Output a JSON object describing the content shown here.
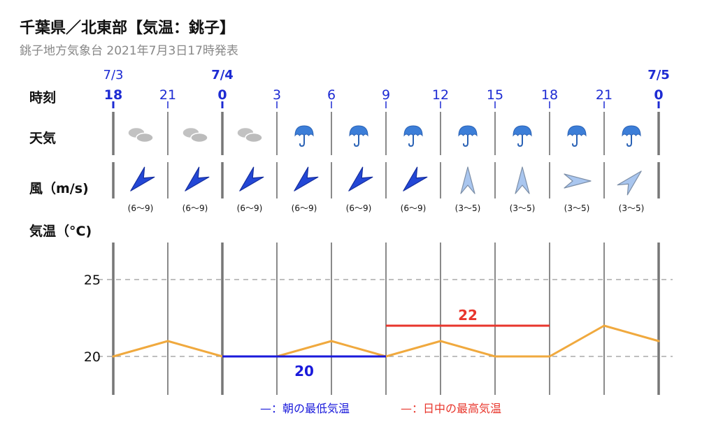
{
  "header": {
    "title": "千葉県／北東部【気温：銚子】",
    "subtitle": "銚子地方気象台 2021年7月3日17時発表"
  },
  "row_labels": {
    "time": "時刻",
    "weather": "天気",
    "wind": "風（m/s)",
    "temp": "気温（°C)"
  },
  "colors": {
    "date_text": "#1d2bd3",
    "temp_line": "#f0a93e",
    "min_line": "#1a1adb",
    "max_line": "#e8362c"
  },
  "chart_data": {
    "type": "line",
    "x": [
      "18",
      "21",
      "0",
      "3",
      "6",
      "9",
      "12",
      "15",
      "18",
      "21",
      "0"
    ],
    "day_markers": [
      {
        "index": 0,
        "label": "7/3",
        "bold": false
      },
      {
        "index": 2,
        "label": "7/4",
        "bold": true
      },
      {
        "index": 10,
        "label": "7/5",
        "bold": true
      }
    ],
    "series": [
      {
        "values": [
          20,
          21,
          20,
          20,
          21,
          20,
          21,
          20,
          20,
          22,
          21
        ]
      }
    ],
    "weather": [
      "cloudy",
      "cloudy",
      "cloudy",
      "rain",
      "rain",
      "rain",
      "rain",
      "rain",
      "rain",
      "rain"
    ],
    "wind": [
      {
        "dir": "SW",
        "range": "(6〜9)",
        "strong": true
      },
      {
        "dir": "SW",
        "range": "(6〜9)",
        "strong": true
      },
      {
        "dir": "SW",
        "range": "(6〜9)",
        "strong": true
      },
      {
        "dir": "SW",
        "range": "(6〜9)",
        "strong": true
      },
      {
        "dir": "SW",
        "range": "(6〜9)",
        "strong": true
      },
      {
        "dir": "SW",
        "range": "(6〜9)",
        "strong": true
      },
      {
        "dir": "N",
        "range": "(3〜5)",
        "strong": false
      },
      {
        "dir": "N",
        "range": "(3〜5)",
        "strong": false
      },
      {
        "dir": "E",
        "range": "(3〜5)",
        "strong": false
      },
      {
        "dir": "NE",
        "range": "(3〜5)",
        "strong": false
      }
    ],
    "yticks": [
      20,
      25
    ],
    "ylim": [
      17.5,
      27.5
    ],
    "morning_min": {
      "value": 20,
      "label": "20",
      "from_index": 2,
      "to_index": 5
    },
    "daytime_max": {
      "value": 22,
      "label": "22",
      "from_index": 5,
      "to_index": 8
    },
    "grid": true
  },
  "legend": {
    "min_label": "—：朝の最低気温",
    "max_label": "—：日中の最高気温"
  }
}
